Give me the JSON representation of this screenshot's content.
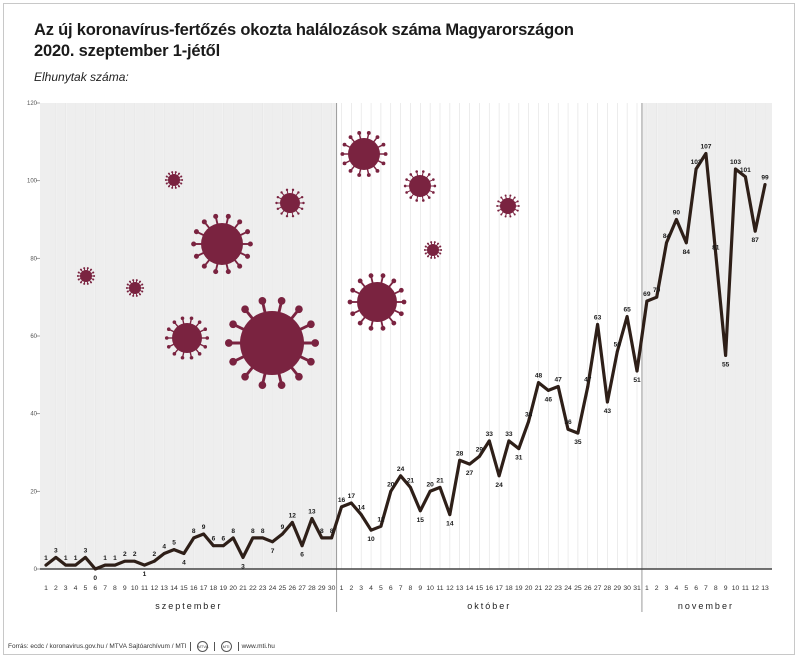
{
  "header": {
    "title_line1": "Az új koronavírus-fertőzés okozta halálozások száma Magyarországon",
    "title_line2": "2020. szeptember 1-jétől",
    "ylabel": "Elhunytak száma:"
  },
  "footer": {
    "source": "Forrás: ecdc / koronavirus.gov.hu / MTVA Sajtóarchívum / MTI",
    "logo1": "MTVA",
    "logo2": "MTI",
    "url": "www.mti.hu"
  },
  "colors": {
    "line": "#2e1f18",
    "virus": "#7a2340",
    "month_shade": "#eeeeee",
    "grid": "#d8d8d8",
    "axis": "#444444"
  },
  "chart_data": {
    "type": "line",
    "title": "Az új koronavírus-fertőzés okozta halálozások száma Magyarországon 2020. szeptember 1-jétől",
    "ylabel": "Elhunytak száma:",
    "ylim": [
      0,
      120
    ],
    "yticks": [
      0,
      20,
      40,
      60,
      80,
      100,
      120
    ],
    "grid": true,
    "months": [
      {
        "label": "szeptember",
        "days": [
          "1",
          "2",
          "3",
          "4",
          "5",
          "6",
          "7",
          "8",
          "9",
          "10",
          "11",
          "12",
          "13",
          "14",
          "15",
          "16",
          "17",
          "18",
          "19",
          "20",
          "21",
          "22",
          "23",
          "24",
          "25",
          "26",
          "27",
          "28",
          "29",
          "30"
        ]
      },
      {
        "label": "október",
        "days": [
          "1",
          "2",
          "3",
          "4",
          "5",
          "6",
          "7",
          "8",
          "9",
          "10",
          "11",
          "12",
          "13",
          "14",
          "15",
          "16",
          "17",
          "18",
          "19",
          "20",
          "21",
          "22",
          "23",
          "24",
          "25",
          "26",
          "27",
          "28",
          "29",
          "30",
          "31"
        ]
      },
      {
        "label": "november",
        "days": [
          "1",
          "2",
          "3",
          "4",
          "5",
          "6",
          "7",
          "8",
          "9",
          "10",
          "11",
          "12",
          "13"
        ]
      }
    ],
    "series": [
      {
        "values": [
          1,
          3,
          1,
          1,
          3,
          0,
          1,
          1,
          2,
          2,
          1,
          2,
          4,
          5,
          4,
          8,
          9,
          6,
          6,
          8,
          3,
          8,
          8,
          7,
          9,
          12,
          6,
          13,
          8,
          8,
          16,
          17,
          14,
          10,
          11,
          20,
          24,
          21,
          15,
          20,
          21,
          14,
          28,
          27,
          29,
          33,
          24,
          33,
          31,
          38,
          48,
          46,
          47,
          36,
          35,
          47,
          63,
          43,
          56,
          65,
          51,
          69,
          70,
          84,
          90,
          84,
          103,
          107,
          81,
          55,
          103,
          101,
          87,
          99
        ],
        "labels": [
          "1",
          "3",
          "1",
          "1",
          "3",
          "0",
          "1",
          "1",
          "2",
          "2",
          "1",
          "2",
          "4",
          "5",
          "4",
          "8",
          "9",
          "6",
          "6",
          "8",
          "3",
          "8",
          "8",
          "7",
          "9",
          "12",
          "6",
          "13",
          "8",
          "8",
          "16",
          "17",
          "14",
          "10",
          "11",
          "20",
          "24",
          "21",
          "15",
          "20",
          "21",
          "14",
          "28",
          "27",
          "29",
          "33",
          "24",
          "33",
          "31",
          "38",
          "48",
          "46",
          "47",
          "36",
          "35",
          "47",
          "63",
          "43",
          "56",
          "65",
          "51",
          "69",
          "70",
          "84",
          "90",
          "84",
          "103",
          "107",
          "81",
          "55",
          "103",
          "101",
          "87",
          "99"
        ]
      }
    ]
  }
}
